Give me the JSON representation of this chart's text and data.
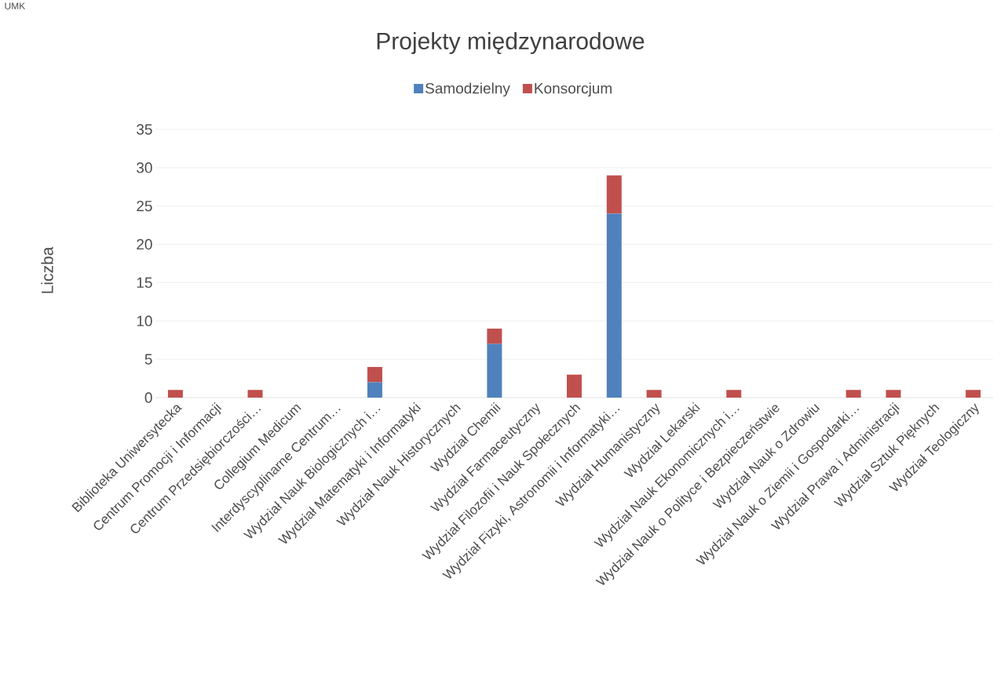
{
  "chart_data": {
    "type": "bar",
    "title": "Projekty międzynarodowe",
    "ylabel": "Liczba",
    "annotations": [
      "UMK"
    ],
    "categories": [
      "Biblioteka Uniwersytecka",
      "Centrum Promocji i Informacji",
      "Centrum Przedsiębiorczości…",
      "Collegium Medicum",
      "Interdyscyplinarne Centrum…",
      "Wydział Nauk Biologicznych i…",
      "Wydział Matematyki i Informatyki",
      "Wydział Nauk Historycznych",
      "Wydział Chemii",
      "Wydział Farmaceutyczny",
      "Wydział Filozofii i Nauk Społecznych",
      "Wydział Fizyki, Astronomii i Informatyki…",
      "Wydział Humanistyczny",
      "Wydział Lekarski",
      "Wydział Nauk Ekonomicznych i…",
      "Wydział Nauk o Polityce i Bezpieczeństwie",
      "Wydział Nauk o Zdrowiu",
      "Wydział Nauk o Ziemii i Gospodarki…",
      "Wydział Prawa i Administracji",
      "Wydział Sztuk Pięknych",
      "Wydział Teologiczny"
    ],
    "series": [
      {
        "name": "Samodzielny",
        "color": "#4f81bd",
        "values": [
          0,
          0,
          0,
          0,
          0,
          2,
          0,
          0,
          7,
          0,
          0,
          24,
          0,
          0,
          0,
          0,
          0,
          0,
          0,
          0,
          0
        ]
      },
      {
        "name": "Konsorcjum",
        "color": "#c0504d",
        "values": [
          1,
          0,
          1,
          0,
          0,
          2,
          0,
          0,
          2,
          0,
          3,
          5,
          1,
          0,
          1,
          0,
          0,
          1,
          1,
          0,
          1
        ]
      }
    ],
    "stacked": true,
    "ylim": [
      0,
      35
    ],
    "yticks": [
      0,
      5,
      10,
      15,
      20,
      25,
      30,
      35
    ],
    "grid": "y",
    "legend": "top"
  }
}
